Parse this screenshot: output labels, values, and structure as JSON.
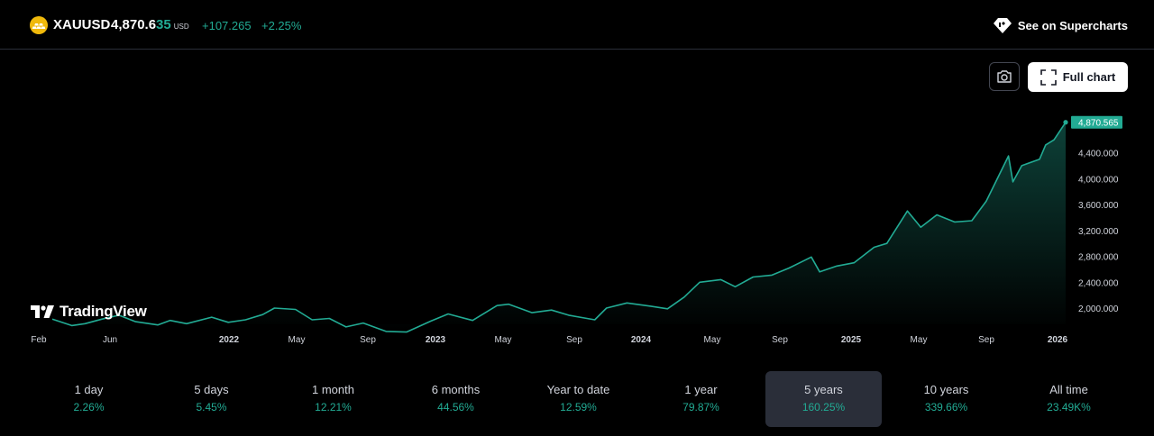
{
  "header": {
    "symbol": "XAUUSD",
    "price_main": "4,870.6",
    "price_last": "35",
    "currency": "USD",
    "change": "+107.265",
    "change_pct": "+2.25%",
    "supercharts_label": "See on Supercharts",
    "full_chart_label": "Full chart"
  },
  "logo_text": "TradingView",
  "colors": {
    "up": "#22ab94",
    "background": "#000000",
    "line": "#22ab94"
  },
  "chart_data": {
    "type": "area",
    "x_tick_labels": [
      "Feb",
      "Jun",
      "2022",
      "May",
      "Sep",
      "2023",
      "May",
      "Sep",
      "2024",
      "May",
      "Sep",
      "2025",
      "May",
      "Sep",
      "2026"
    ],
    "y_tick_labels": [
      "4,400.000",
      "4,000.000",
      "3,600.000",
      "3,200.000",
      "2,800.000",
      "2,400.000",
      "2,000.000"
    ],
    "y_ticks": [
      4400,
      4000,
      3600,
      3200,
      2800,
      2400,
      2000
    ],
    "last_value_label": "4,870.565",
    "last_value": 4870.565,
    "ylim": [
      1750,
      4950
    ],
    "x_start": "2021-02-01",
    "x_end": "2026-01-31",
    "series": [
      {
        "values": [
          [
            "2021-02-01",
            1830
          ],
          [
            "2021-03-08",
            1730
          ],
          [
            "2021-04-01",
            1760
          ],
          [
            "2021-05-01",
            1830
          ],
          [
            "2021-06-01",
            1890
          ],
          [
            "2021-07-01",
            1790
          ],
          [
            "2021-08-10",
            1740
          ],
          [
            "2021-09-01",
            1810
          ],
          [
            "2021-10-01",
            1760
          ],
          [
            "2021-11-15",
            1860
          ],
          [
            "2021-12-15",
            1780
          ],
          [
            "2022-01-15",
            1820
          ],
          [
            "2022-02-15",
            1900
          ],
          [
            "2022-03-08",
            2000
          ],
          [
            "2022-04-15",
            1980
          ],
          [
            "2022-05-15",
            1820
          ],
          [
            "2022-06-15",
            1840
          ],
          [
            "2022-07-15",
            1710
          ],
          [
            "2022-08-15",
            1770
          ],
          [
            "2022-09-25",
            1640
          ],
          [
            "2022-11-01",
            1630
          ],
          [
            "2022-12-15",
            1800
          ],
          [
            "2023-01-15",
            1910
          ],
          [
            "2023-02-28",
            1810
          ],
          [
            "2023-04-13",
            2040
          ],
          [
            "2023-05-04",
            2060
          ],
          [
            "2023-06-15",
            1930
          ],
          [
            "2023-07-20",
            1970
          ],
          [
            "2023-08-20",
            1890
          ],
          [
            "2023-10-06",
            1820
          ],
          [
            "2023-10-27",
            2000
          ],
          [
            "2023-12-03",
            2080
          ],
          [
            "2024-01-15",
            2030
          ],
          [
            "2024-02-14",
            1990
          ],
          [
            "2024-03-15",
            2170
          ],
          [
            "2024-04-12",
            2400
          ],
          [
            "2024-05-20",
            2440
          ],
          [
            "2024-06-15",
            2330
          ],
          [
            "2024-07-17",
            2480
          ],
          [
            "2024-08-20",
            2510
          ],
          [
            "2024-09-20",
            2620
          ],
          [
            "2024-10-30",
            2790
          ],
          [
            "2024-11-14",
            2560
          ],
          [
            "2024-12-15",
            2650
          ],
          [
            "2025-01-15",
            2700
          ],
          [
            "2025-02-20",
            2940
          ],
          [
            "2025-03-15",
            3000
          ],
          [
            "2025-04-21",
            3500
          ],
          [
            "2025-05-15",
            3250
          ],
          [
            "2025-06-13",
            3440
          ],
          [
            "2025-07-15",
            3330
          ],
          [
            "2025-08-15",
            3350
          ],
          [
            "2025-09-10",
            3650
          ],
          [
            "2025-10-20",
            4350
          ],
          [
            "2025-10-28",
            3950
          ],
          [
            "2025-11-13",
            4200
          ],
          [
            "2025-12-15",
            4300
          ],
          [
            "2025-12-26",
            4520
          ],
          [
            "2026-01-10",
            4600
          ],
          [
            "2026-01-31",
            4870
          ]
        ]
      }
    ]
  },
  "periods": [
    {
      "label": "1 day",
      "value": "2.26%"
    },
    {
      "label": "5 days",
      "value": "5.45%"
    },
    {
      "label": "1 month",
      "value": "12.21%"
    },
    {
      "label": "6 months",
      "value": "44.56%"
    },
    {
      "label": "Year to date",
      "value": "12.59%"
    },
    {
      "label": "1 year",
      "value": "79.87%"
    },
    {
      "label": "5 years",
      "value": "160.25%",
      "active": true
    },
    {
      "label": "10 years",
      "value": "339.66%"
    },
    {
      "label": "All time",
      "value": "23.49K%"
    }
  ]
}
